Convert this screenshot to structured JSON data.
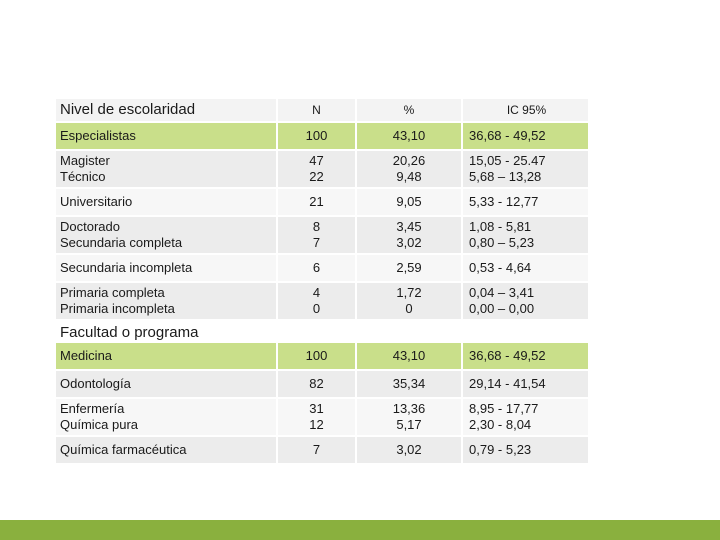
{
  "headers": {
    "level": "Nivel de escolaridad",
    "n": "N",
    "pct": "%",
    "ci": "IC 95%"
  },
  "education_rows": [
    {
      "label": "Especialistas",
      "n": "100",
      "pct": "43,10",
      "ci": "36,68 - 49,52"
    },
    {
      "label_lines": [
        "Magister",
        "Técnico"
      ],
      "n_lines": [
        "47",
        "22"
      ],
      "pct_lines": [
        "20,26",
        "9,48"
      ],
      "ci_lines": [
        "15,05 - 25.47",
        "5,68 – 13,28"
      ]
    },
    {
      "label": "Universitario",
      "n": "21",
      "pct": "9,05",
      "ci": "5,33 - 12,77"
    },
    {
      "label_lines": [
        "Doctorado",
        "Secundaria completa"
      ],
      "n_lines": [
        "8",
        "7"
      ],
      "pct_lines": [
        "3,45",
        "3,02"
      ],
      "ci_lines": [
        "1,08 - 5,81",
        "0,80 – 5,23"
      ]
    },
    {
      "label": "Secundaria incompleta",
      "n": "6",
      "pct": "2,59",
      "ci": "0,53 - 4,64"
    },
    {
      "label_lines": [
        "Primaria completa",
        "Primaria incompleta"
      ],
      "n_lines": [
        "4",
        "0"
      ],
      "pct_lines": [
        "1,72",
        "0"
      ],
      "ci_lines": [
        "0,04 – 3,41",
        "0,00 – 0,00"
      ]
    }
  ],
  "section2_title": "Facultad o programa",
  "faculty_rows": [
    {
      "label": "Medicina",
      "n": "100",
      "pct": "43,10",
      "ci": "36,68 - 49,52"
    },
    {
      "label": "Odontología",
      "n": "82",
      "pct": "35,34",
      "ci": "29,14 - 41,54"
    },
    {
      "label_lines": [
        "Enfermería",
        "Química pura"
      ],
      "n_lines": [
        "31",
        "12"
      ],
      "pct_lines": [
        "13,36",
        "5,17"
      ],
      "ci_lines": [
        "8,95 - 17,77",
        "2,30 - 8,04"
      ]
    },
    {
      "label": "Química farmacéutica",
      "n": "7",
      "pct": "3,02",
      "ci": "0,79 - 5,23"
    }
  ],
  "colors": {
    "highlight": "#c9df8a",
    "bar": "#8ab03e",
    "row_dark": "#ececec",
    "row_light": "#f7f7f7"
  }
}
